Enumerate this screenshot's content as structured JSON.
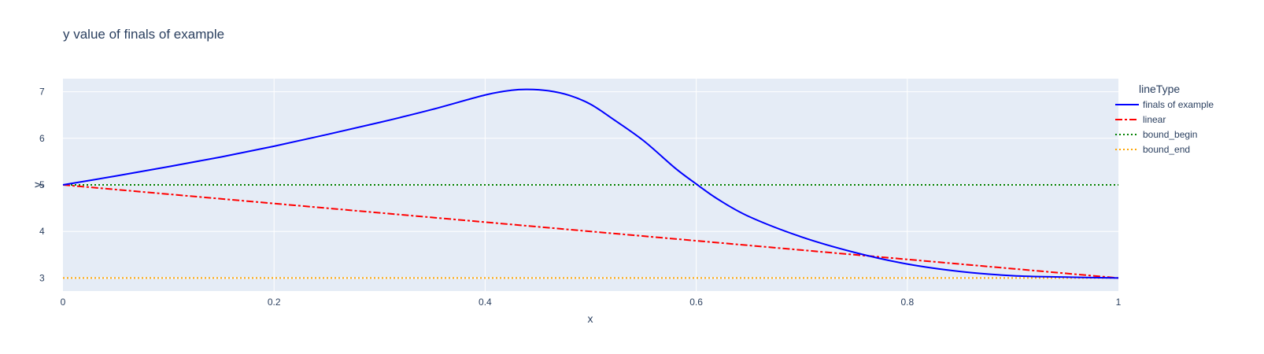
{
  "chart_data": {
    "type": "line",
    "title": "y value of finals of example",
    "xlabel": "x",
    "ylabel": "y",
    "xlim": [
      0,
      1
    ],
    "ylim": [
      2.72,
      7.28
    ],
    "x_ticks": [
      0,
      0.2,
      0.4,
      0.6,
      0.8,
      1
    ],
    "x_tick_labels": [
      "0",
      "0.2",
      "0.4",
      "0.6",
      "0.8",
      "1"
    ],
    "y_ticks": [
      3,
      4,
      5,
      6,
      7
    ],
    "y_tick_labels": [
      "3",
      "4",
      "5",
      "6",
      "7"
    ],
    "grid": true,
    "legend_title": "lineType",
    "legend_position": "right",
    "plot_background": "#e5ecf6",
    "series": [
      {
        "name": "finals of example",
        "color": "#0000ff",
        "dash": "solid",
        "x": [
          0,
          0.05,
          0.1,
          0.15,
          0.2,
          0.25,
          0.3,
          0.35,
          0.4,
          0.425,
          0.44,
          0.46,
          0.48,
          0.5,
          0.52,
          0.55,
          0.58,
          0.6,
          0.62,
          0.65,
          0.7,
          0.75,
          0.8,
          0.85,
          0.9,
          0.95,
          1
        ],
        "y": [
          5.0,
          5.19,
          5.39,
          5.6,
          5.83,
          6.08,
          6.34,
          6.62,
          6.93,
          7.03,
          7.05,
          7.02,
          6.92,
          6.73,
          6.43,
          5.95,
          5.36,
          5.02,
          4.7,
          4.32,
          3.88,
          3.55,
          3.3,
          3.14,
          3.05,
          3.02,
          3.0
        ]
      },
      {
        "name": "linear",
        "color": "#ff0000",
        "dash": "dashdot",
        "x": [
          0,
          1
        ],
        "y": [
          5,
          3
        ]
      },
      {
        "name": "bound_begin",
        "color": "#008000",
        "dash": "dot",
        "x": [
          0,
          1
        ],
        "y": [
          5,
          5
        ]
      },
      {
        "name": "bound_end",
        "color": "#ffa500",
        "dash": "dot",
        "x": [
          0,
          1
        ],
        "y": [
          3,
          3
        ]
      }
    ]
  }
}
